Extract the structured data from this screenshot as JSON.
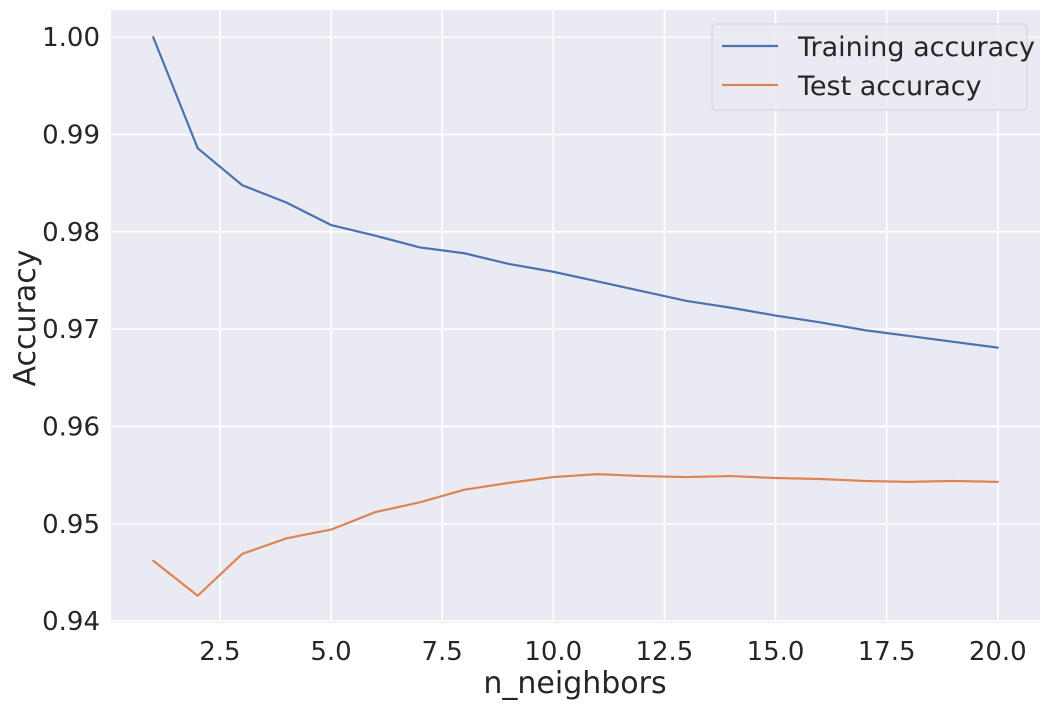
{
  "chart_data": {
    "type": "line",
    "title": "",
    "xlabel": "n_neighbors",
    "ylabel": "Accuracy",
    "xlim": [
      0.05,
      20.95
    ],
    "ylim": [
      0.9398,
      1.0028
    ],
    "xticks": [
      2.5,
      5.0,
      7.5,
      10.0,
      12.5,
      15.0,
      17.5,
      20.0
    ],
    "xtick_labels": [
      "2.5",
      "5.0",
      "7.5",
      "10.0",
      "12.5",
      "15.0",
      "17.5",
      "20.0"
    ],
    "yticks": [
      0.94,
      0.95,
      0.96,
      0.97,
      0.98,
      0.99,
      1.0
    ],
    "ytick_labels": [
      "0.94",
      "0.95",
      "0.96",
      "0.97",
      "0.98",
      "0.99",
      "1.00"
    ],
    "grid": true,
    "legend_position": "top-right",
    "x": [
      1,
      2,
      3,
      4,
      5,
      6,
      7,
      8,
      9,
      10,
      11,
      12,
      13,
      14,
      15,
      16,
      17,
      18,
      19,
      20
    ],
    "series": [
      {
        "name": "Training accuracy",
        "color": "#4c72b0",
        "values": [
          1.0,
          0.9886,
          0.9848,
          0.983,
          0.9807,
          0.9796,
          0.9784,
          0.9778,
          0.9767,
          0.9759,
          0.9749,
          0.9739,
          0.9729,
          0.9722,
          0.9714,
          0.9707,
          0.9699,
          0.9693,
          0.9687,
          0.9681
        ]
      },
      {
        "name": "Test accuracy",
        "color": "#dd8452",
        "values": [
          0.9462,
          0.9426,
          0.9469,
          0.9485,
          0.9494,
          0.9512,
          0.9522,
          0.9535,
          0.9542,
          0.9548,
          0.9551,
          0.9549,
          0.9548,
          0.9549,
          0.9547,
          0.9546,
          0.9544,
          0.9543,
          0.9544,
          0.9543
        ]
      }
    ]
  },
  "style": {
    "plot_background": "#eaeaf2",
    "grid_color": "#ffffff",
    "text_color": "#262626"
  }
}
